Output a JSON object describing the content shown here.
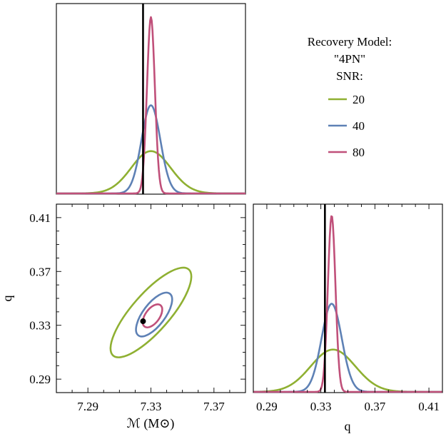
{
  "legend": {
    "title": "Recovery Model:",
    "model": "\"4PN\"",
    "snr_label": "SNR:",
    "entries": [
      {
        "label": "20",
        "color": "#8FB032"
      },
      {
        "label": "40",
        "color": "#5E81B5"
      },
      {
        "label": "80",
        "color": "#C0507A"
      }
    ]
  },
  "chart_data": [
    {
      "type": "line",
      "panel": "top-left",
      "description_of_axis": "chirp mass marginal",
      "xlim": [
        7.27,
        7.39
      ],
      "truth_x": 7.325,
      "series": [
        {
          "name": "20",
          "color": "#8FB032",
          "mu": 7.33,
          "sigma": 0.0125,
          "peak": 0.24
        },
        {
          "name": "40",
          "color": "#5E81B5",
          "mu": 7.33,
          "sigma": 0.006,
          "peak": 0.5
        },
        {
          "name": "80",
          "color": "#C0507A",
          "mu": 7.33,
          "sigma": 0.0025,
          "peak": 1.0
        }
      ]
    },
    {
      "type": "scatter",
      "panel": "bottom-left",
      "xlabel": "ℳ (M⊙)",
      "ylabel": "q",
      "xlim": [
        7.27,
        7.39
      ],
      "ylim": [
        0.28,
        0.42
      ],
      "xticks": [
        "7.29",
        "7.33",
        "7.37"
      ],
      "xtick_values": [
        7.29,
        7.33,
        7.37
      ],
      "yticks": [
        "0.41",
        "0.37",
        "0.33",
        "0.29"
      ],
      "ytick_values": [
        0.41,
        0.37,
        0.33,
        0.29
      ],
      "truth_point": [
        7.325,
        0.333
      ],
      "contours": [
        {
          "name": "20",
          "color": "#8FB032",
          "center": [
            7.33,
            0.3395
          ],
          "p1": [
            7.352,
            0.372
          ],
          "p2": [
            7.304,
            0.308
          ],
          "width": 0.012
        },
        {
          "name": "40",
          "color": "#5E81B5",
          "center": [
            7.332,
            0.338
          ],
          "p1": [
            7.342,
            0.353
          ],
          "p2": [
            7.322,
            0.322
          ],
          "width": 0.007
        },
        {
          "name": "80",
          "color": "#C0507A",
          "center": [
            7.331,
            0.337
          ],
          "p1": [
            7.336,
            0.344
          ],
          "p2": [
            7.326,
            0.328
          ],
          "width": 0.0045
        }
      ]
    },
    {
      "type": "line",
      "panel": "bottom-right",
      "xlabel": "q",
      "xlim": [
        0.28,
        0.42
      ],
      "xticks": [
        "0.29",
        "0.33",
        "0.37",
        "0.41"
      ],
      "xtick_values": [
        0.29,
        0.33,
        0.37,
        0.41
      ],
      "truth_x": 0.333,
      "series": [
        {
          "name": "20",
          "color": "#8FB032",
          "mu": 0.339,
          "sigma": 0.0165,
          "peak": 0.24
        },
        {
          "name": "40",
          "color": "#5E81B5",
          "mu": 0.338,
          "sigma": 0.0075,
          "peak": 0.5
        },
        {
          "name": "80",
          "color": "#C0507A",
          "mu": 0.338,
          "sigma": 0.0028,
          "peak": 1.0
        }
      ]
    }
  ]
}
